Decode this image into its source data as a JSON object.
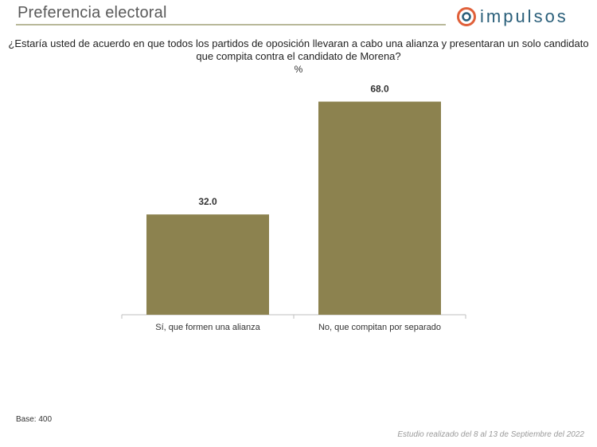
{
  "header": {
    "title": "Preferencia electoral",
    "logo_text": "impulsos",
    "logo_icon": "impulsos-logo-icon"
  },
  "question": "¿Estaría usted de acuerdo en que todos los partidos de oposición llevaran a cabo una alianza y presentaran un solo candidato que compita contra el candidato de Morena?",
  "unit": "%",
  "chart_data": {
    "type": "bar",
    "title": "",
    "xlabel": "",
    "ylabel": "",
    "categories": [
      "Sí, que formen una alianza",
      "No, que compitan por separado"
    ],
    "values": [
      32.0,
      68.0
    ],
    "value_labels": [
      "32.0",
      "68.0"
    ],
    "ylim": [
      0,
      75
    ],
    "grid": false,
    "legend": "none",
    "bar_color": "#8c824f"
  },
  "footer": {
    "base": "Base: 400",
    "note": "Estudio realizado del 8 al 13 de Septiembre del 2022"
  }
}
